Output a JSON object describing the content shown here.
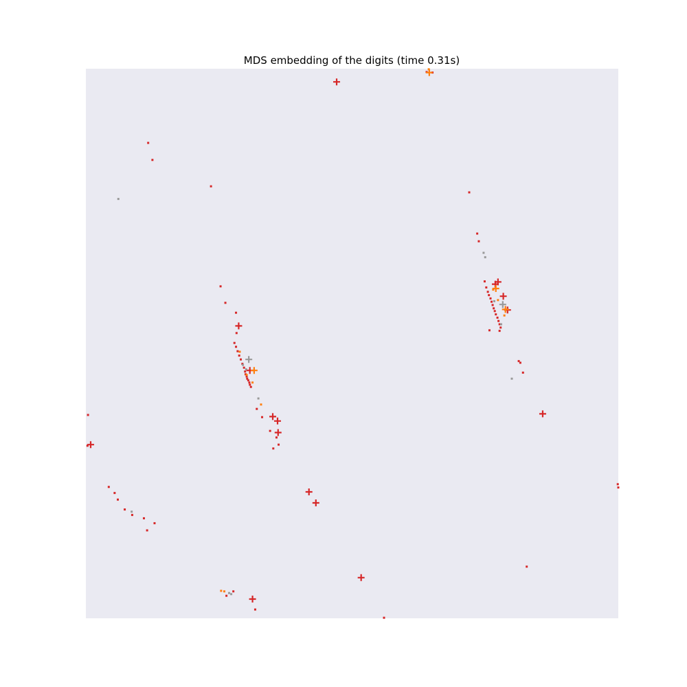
{
  "colors": {
    "plot_bg": "#eaeaf2",
    "red": "#d62728",
    "orange": "#ff7f0e",
    "gray": "#999999"
  },
  "chart_data": {
    "type": "scatter",
    "title": "MDS embedding of the digits (time 0.31s)",
    "xlabel": "",
    "ylabel": "",
    "xlim": [
      0,
      1
    ],
    "ylim": [
      0,
      1
    ],
    "axes_visible": false,
    "grid": false,
    "legend": "none",
    "marker_types": {
      "dot": "small square",
      "plus": "plus sign"
    },
    "series": [
      {
        "color": "red",
        "marker": "plus",
        "x": [
          0.471,
          0.287,
          0.308,
          0.351,
          0.36,
          0.361,
          0.009,
          0.419,
          0.432,
          0.517,
          0.313,
          0.774,
          0.858,
          0.784,
          0.769,
          0.792
        ],
        "y": [
          0.976,
          0.532,
          0.451,
          0.367,
          0.359,
          0.338,
          0.316,
          0.23,
          0.21,
          0.074,
          0.035,
          0.612,
          0.372,
          0.586,
          0.608,
          0.561
        ]
      },
      {
        "color": "orange",
        "marker": "plus",
        "x": [
          0.316,
          0.645,
          0.77,
          0.788
        ],
        "y": [
          0.451,
          0.993,
          0.6,
          0.562
        ]
      },
      {
        "color": "gray",
        "marker": "plus",
        "x": [
          0.306,
          0.783
        ],
        "y": [
          0.471,
          0.571
        ]
      },
      {
        "color": "red",
        "marker": "dot",
        "x": [
          0.117,
          0.125,
          0.235,
          0.253,
          0.262,
          0.282,
          0.283,
          0.279,
          0.282,
          0.285,
          0.288,
          0.291,
          0.294,
          0.297,
          0.299,
          0.3,
          0.302,
          0.303,
          0.305,
          0.307,
          0.308,
          0.31,
          0.321,
          0.331,
          0.346,
          0.352,
          0.358,
          0.362,
          0.004,
          0.003,
          0.043,
          0.054,
          0.06,
          0.073,
          0.087,
          0.109,
          0.129,
          0.115,
          0.264,
          0.277,
          0.318,
          0.56,
          0.64,
          0.651,
          0.72,
          0.735,
          0.738,
          0.749,
          0.752,
          0.755,
          0.757,
          0.76,
          0.762,
          0.764,
          0.766,
          0.768,
          0.77,
          0.773,
          0.775,
          0.777,
          0.779,
          0.758,
          0.777,
          0.813,
          0.816,
          0.821,
          0.828,
          0.999,
          1.0
        ],
        "y": [
          0.865,
          0.834,
          0.786,
          0.604,
          0.574,
          0.556,
          0.519,
          0.501,
          0.494,
          0.486,
          0.478,
          0.471,
          0.463,
          0.456,
          0.449,
          0.444,
          0.44,
          0.436,
          0.433,
          0.429,
          0.425,
          0.421,
          0.381,
          0.366,
          0.341,
          0.309,
          0.329,
          0.316,
          0.37,
          0.314,
          0.239,
          0.228,
          0.216,
          0.198,
          0.188,
          0.182,
          0.173,
          0.16,
          0.041,
          0.049,
          0.016,
          0.001,
          0.994,
          0.993,
          0.775,
          0.7,
          0.686,
          0.613,
          0.602,
          0.594,
          0.588,
          0.582,
          0.576,
          0.57,
          0.564,
          0.559,
          0.553,
          0.547,
          0.541,
          0.535,
          0.529,
          0.524,
          0.523,
          0.468,
          0.465,
          0.447,
          0.094,
          0.244,
          0.238
        ]
      },
      {
        "color": "orange",
        "marker": "dot",
        "x": [
          0.289,
          0.302,
          0.313,
          0.329,
          0.254,
          0.26,
          0.644,
          0.765,
          0.774,
          0.786
        ],
        "y": [
          0.485,
          0.443,
          0.429,
          0.389,
          0.05,
          0.049,
          0.999,
          0.598,
          0.579,
          0.551
        ]
      },
      {
        "color": "gray",
        "marker": "dot",
        "x": [
          0.061,
          0.295,
          0.301,
          0.324,
          0.086,
          0.269,
          0.273,
          0.747,
          0.75,
          0.767,
          0.78,
          0.8
        ],
        "y": [
          0.763,
          0.461,
          0.453,
          0.4,
          0.194,
          0.046,
          0.044,
          0.665,
          0.657,
          0.577,
          0.535,
          0.436
        ]
      }
    ]
  }
}
